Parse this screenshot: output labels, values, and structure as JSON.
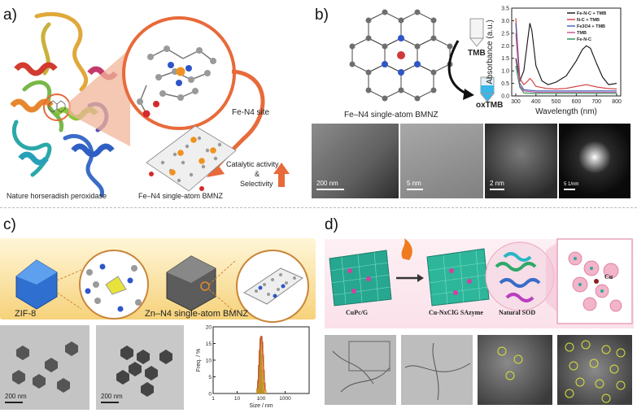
{
  "panel_a": {
    "label": "a)",
    "site_label": "Fe-N4 site",
    "catalytic_label_line1": "Catalytic activity",
    "catalytic_label_line2": "&",
    "catalytic_label_line3": "Selectivity",
    "caption_left": "Nature horseradish peroxidase",
    "caption_right": "Fe–N4 single-atom BMNZ"
  },
  "panel_b": {
    "label": "b)",
    "tmb_label": "TMB",
    "oxtmb_label": "oxTMB",
    "caption": "Fe–N4 single-atom BMNZ",
    "micro_scales": [
      "200 nm",
      "5 nm",
      "2 nm",
      "5 1/nm"
    ]
  },
  "panel_c": {
    "label": "c)",
    "zif_label": "ZIF-8",
    "zn_label": "Zn–N4 single-atom BMNZ",
    "micro_scales": [
      "200 nm",
      "200 nm"
    ]
  },
  "panel_d": {
    "label": "d)",
    "cupc_label": "CuPc/G",
    "sazyme_label": "Cu-NxClG SAzyme",
    "sod_label": "Natural SOD",
    "cu_label": "Cu"
  },
  "chart_data": [
    {
      "type": "line",
      "xlabel": "Wavelength (nm)",
      "ylabel": "Absorbance (a.u.)",
      "xlim": [
        280,
        820
      ],
      "ylim": [
        0,
        3.5
      ],
      "xticks": [
        300,
        400,
        500,
        600,
        700,
        800
      ],
      "yticks": [
        0.0,
        0.5,
        1.0,
        1.5,
        2.0,
        2.5,
        3.0,
        3.5
      ],
      "legend_position": "top-right",
      "series": [
        {
          "name": "Fe-N-C + TMB",
          "color": "#111111",
          "x": [
            300,
            320,
            340,
            360,
            370,
            380,
            400,
            430,
            460,
            500,
            550,
            600,
            630,
            650,
            670,
            700,
            730,
            760,
            800
          ],
          "y": [
            1.5,
            0.6,
            1.0,
            2.3,
            2.9,
            2.6,
            1.2,
            0.6,
            0.45,
            0.55,
            0.8,
            1.4,
            1.85,
            2.0,
            1.9,
            1.3,
            0.75,
            0.45,
            0.5
          ]
        },
        {
          "name": "N-C + TMB",
          "color": "#d0383a",
          "x": [
            300,
            320,
            340,
            360,
            370,
            380,
            400,
            450,
            500,
            550,
            600,
            650,
            700,
            750,
            800
          ],
          "y": [
            3.1,
            0.7,
            0.45,
            0.6,
            0.7,
            0.62,
            0.38,
            0.3,
            0.28,
            0.3,
            0.38,
            0.45,
            0.36,
            0.3,
            0.28
          ]
        },
        {
          "name": "Fe3O4 + TMB",
          "color": "#3a5fbf",
          "x": [
            300,
            320,
            340,
            400,
            500,
            600,
            700,
            800
          ],
          "y": [
            2.9,
            0.5,
            0.25,
            0.2,
            0.2,
            0.2,
            0.2,
            0.2
          ]
        },
        {
          "name": "TMB",
          "color": "#c2528f",
          "x": [
            300,
            320,
            340,
            400,
            500,
            600,
            700,
            800
          ],
          "y": [
            2.5,
            0.4,
            0.2,
            0.15,
            0.15,
            0.15,
            0.15,
            0.15
          ]
        },
        {
          "name": "Fe-N-C",
          "color": "#2e8b57",
          "x": [
            300,
            320,
            340,
            400,
            500,
            600,
            700,
            800
          ],
          "y": [
            1.2,
            0.35,
            0.12,
            0.1,
            0.1,
            0.1,
            0.1,
            0.1
          ]
        }
      ]
    },
    {
      "type": "bar",
      "xlabel": "Size / nm",
      "ylabel": "Freq. / %",
      "xscale": "log",
      "xlim": [
        1,
        10000
      ],
      "ylim": [
        0,
        20
      ],
      "xticks": [
        1,
        10,
        100,
        1000
      ],
      "yticks": [
        0,
        5,
        10,
        15,
        20
      ],
      "x": [
        70,
        76,
        82,
        88,
        95,
        102,
        110,
        118,
        127,
        137,
        148
      ],
      "values": [
        1.5,
        4.0,
        8.5,
        13.0,
        16.5,
        17.2,
        15.5,
        11.5,
        7.0,
        3.2,
        1.0
      ],
      "fit_color": "#d0383a",
      "bar_color": "#e4b03a"
    }
  ]
}
